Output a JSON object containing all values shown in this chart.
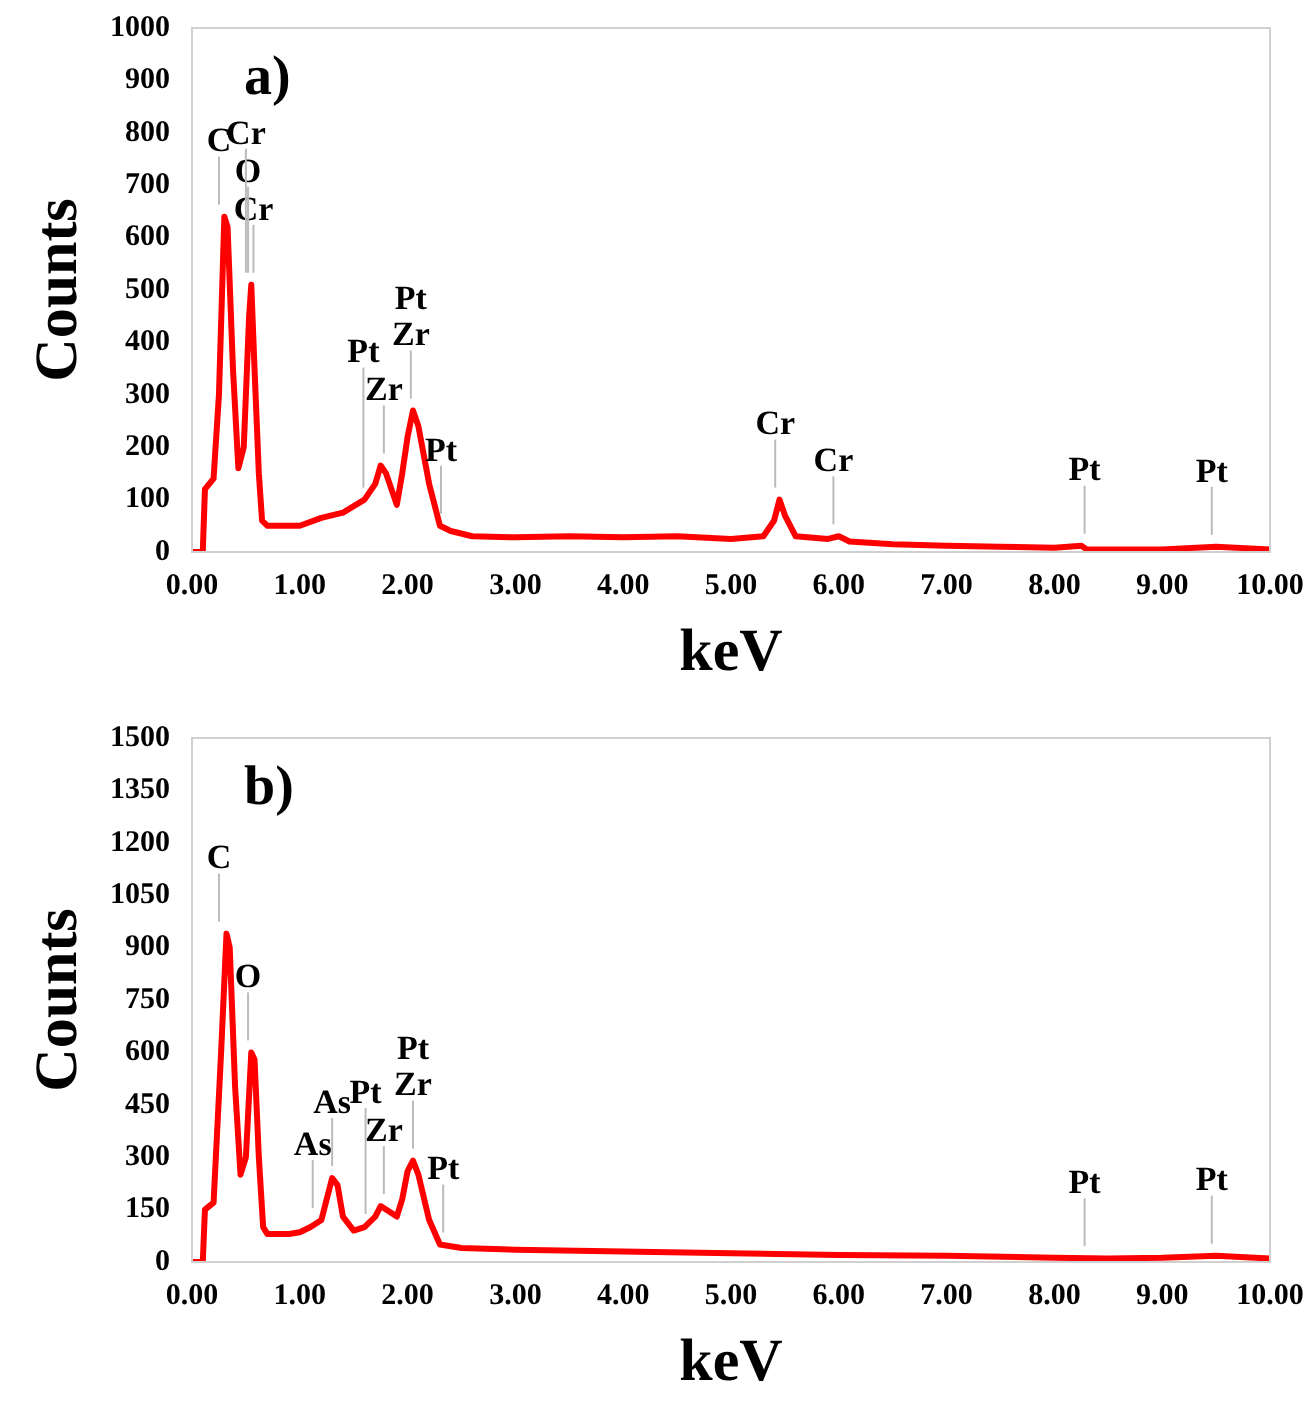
{
  "chart_data": [
    {
      "type": "line",
      "title": "a)",
      "xlabel": "keV",
      "ylabel": "Counts",
      "xlim": [
        0,
        10
      ],
      "xticks": [
        {
          "value": 0,
          "label": "0.00"
        },
        {
          "value": 1,
          "label": "1.00"
        },
        {
          "value": 2,
          "label": "2.00"
        },
        {
          "value": 3,
          "label": "3.00"
        },
        {
          "value": 4,
          "label": "4.00"
        },
        {
          "value": 5,
          "label": "5.00"
        },
        {
          "value": 6,
          "label": "6.00"
        },
        {
          "value": 7,
          "label": "7.00"
        },
        {
          "value": 8,
          "label": "8.00"
        },
        {
          "value": 9,
          "label": "9.00"
        },
        {
          "value": 10,
          "label": "10.00"
        }
      ],
      "ylim": [
        0,
        1000
      ],
      "yticks": [
        0,
        100,
        200,
        300,
        400,
        500,
        600,
        700,
        800,
        900,
        1000
      ],
      "series": [
        {
          "color": "#ff0000",
          "x": [
            0,
            0.1,
            0.12,
            0.2,
            0.25,
            0.3,
            0.33,
            0.38,
            0.43,
            0.48,
            0.53,
            0.55,
            0.58,
            0.62,
            0.65,
            0.7,
            0.8,
            1.0,
            1.2,
            1.4,
            1.6,
            1.7,
            1.75,
            1.8,
            1.85,
            1.9,
            1.95,
            2.0,
            2.05,
            2.1,
            2.2,
            2.3,
            2.4,
            2.6,
            3.0,
            3.5,
            4.0,
            4.5,
            5.0,
            5.3,
            5.4,
            5.45,
            5.5,
            5.6,
            5.9,
            6.0,
            6.1,
            6.5,
            7.0,
            7.5,
            8.0,
            8.25,
            8.3,
            9.0,
            9.5,
            10.0
          ],
          "values": [
            0,
            0,
            120,
            140,
            300,
            640,
            620,
            350,
            160,
            200,
            450,
            510,
            350,
            150,
            60,
            50,
            50,
            50,
            65,
            75,
            100,
            130,
            165,
            150,
            120,
            90,
            150,
            220,
            270,
            240,
            130,
            50,
            40,
            30,
            28,
            30,
            28,
            30,
            25,
            30,
            60,
            100,
            70,
            30,
            25,
            30,
            20,
            15,
            12,
            10,
            8,
            12,
            5,
            5,
            10,
            5
          ]
        }
      ],
      "ref_lines": [
        {
          "axis": "x",
          "value": 0.25,
          "label": "C"
        },
        {
          "axis": "x",
          "value": 0.57,
          "label": "Cr"
        },
        {
          "axis": "x",
          "value": 0.52,
          "label": "O"
        },
        {
          "axis": "x",
          "value": 0.5,
          "label": "Cr"
        },
        {
          "axis": "x",
          "value": 1.78,
          "label": "Zr"
        },
        {
          "axis": "x",
          "value": 1.59,
          "label": "Pt"
        },
        {
          "axis": "x",
          "value": 2.03,
          "label": "Pt\nZr"
        },
        {
          "axis": "x",
          "value": 2.31,
          "label": "Pt"
        },
        {
          "axis": "x",
          "value": 5.41,
          "label": "Cr"
        },
        {
          "axis": "x",
          "value": 5.95,
          "label": "Cr"
        },
        {
          "axis": "x",
          "value": 8.28,
          "label": "Pt"
        },
        {
          "axis": "x",
          "value": 9.46,
          "label": "Pt"
        }
      ]
    },
    {
      "type": "line",
      "title": "b)",
      "xlabel": "keV",
      "ylabel": "Counts",
      "xlim": [
        0,
        10
      ],
      "xticks": [
        {
          "value": 0,
          "label": "0.00"
        },
        {
          "value": 1,
          "label": "1.00"
        },
        {
          "value": 2,
          "label": "2.00"
        },
        {
          "value": 3,
          "label": "3.00"
        },
        {
          "value": 4,
          "label": "4.00"
        },
        {
          "value": 5,
          "label": "5.00"
        },
        {
          "value": 6,
          "label": "6.00"
        },
        {
          "value": 7,
          "label": "7.00"
        },
        {
          "value": 8,
          "label": "8.00"
        },
        {
          "value": 9,
          "label": "9.00"
        },
        {
          "value": 10,
          "label": "10.00"
        }
      ],
      "ylim": [
        0,
        1500
      ],
      "yticks": [
        0,
        150,
        300,
        450,
        600,
        750,
        900,
        1050,
        1200,
        1350,
        1500
      ],
      "series": [
        {
          "color": "#ff0000",
          "x": [
            0,
            0.1,
            0.12,
            0.2,
            0.27,
            0.32,
            0.35,
            0.4,
            0.45,
            0.5,
            0.55,
            0.58,
            0.62,
            0.66,
            0.7,
            0.9,
            1.0,
            1.1,
            1.2,
            1.25,
            1.3,
            1.35,
            1.4,
            1.5,
            1.6,
            1.7,
            1.75,
            1.8,
            1.9,
            1.95,
            2.0,
            2.05,
            2.1,
            2.2,
            2.3,
            2.5,
            3.0,
            4.0,
            5.0,
            6.0,
            7.0,
            8.0,
            8.5,
            9.0,
            9.5,
            10.0
          ],
          "values": [
            0,
            0,
            150,
            170,
            600,
            940,
            900,
            500,
            250,
            300,
            600,
            580,
            300,
            100,
            80,
            80,
            85,
            100,
            120,
            180,
            240,
            220,
            130,
            90,
            100,
            130,
            160,
            150,
            130,
            180,
            260,
            290,
            250,
            120,
            50,
            40,
            35,
            30,
            25,
            20,
            18,
            12,
            10,
            12,
            18,
            10
          ]
        }
      ],
      "ref_lines": [
        {
          "axis": "x",
          "value": 0.25,
          "label": "C"
        },
        {
          "axis": "x",
          "value": 0.52,
          "label": "O"
        },
        {
          "axis": "x",
          "value": 1.12,
          "label": "As"
        },
        {
          "axis": "x",
          "value": 1.3,
          "label": "As"
        },
        {
          "axis": "x",
          "value": 1.78,
          "label": "Zr"
        },
        {
          "axis": "x",
          "value": 1.61,
          "label": "Pt"
        },
        {
          "axis": "x",
          "value": 2.05,
          "label": "Pt\nZr"
        },
        {
          "axis": "x",
          "value": 2.33,
          "label": "Pt"
        },
        {
          "axis": "x",
          "value": 8.28,
          "label": "Pt"
        },
        {
          "axis": "x",
          "value": 9.46,
          "label": "Pt"
        }
      ]
    }
  ]
}
